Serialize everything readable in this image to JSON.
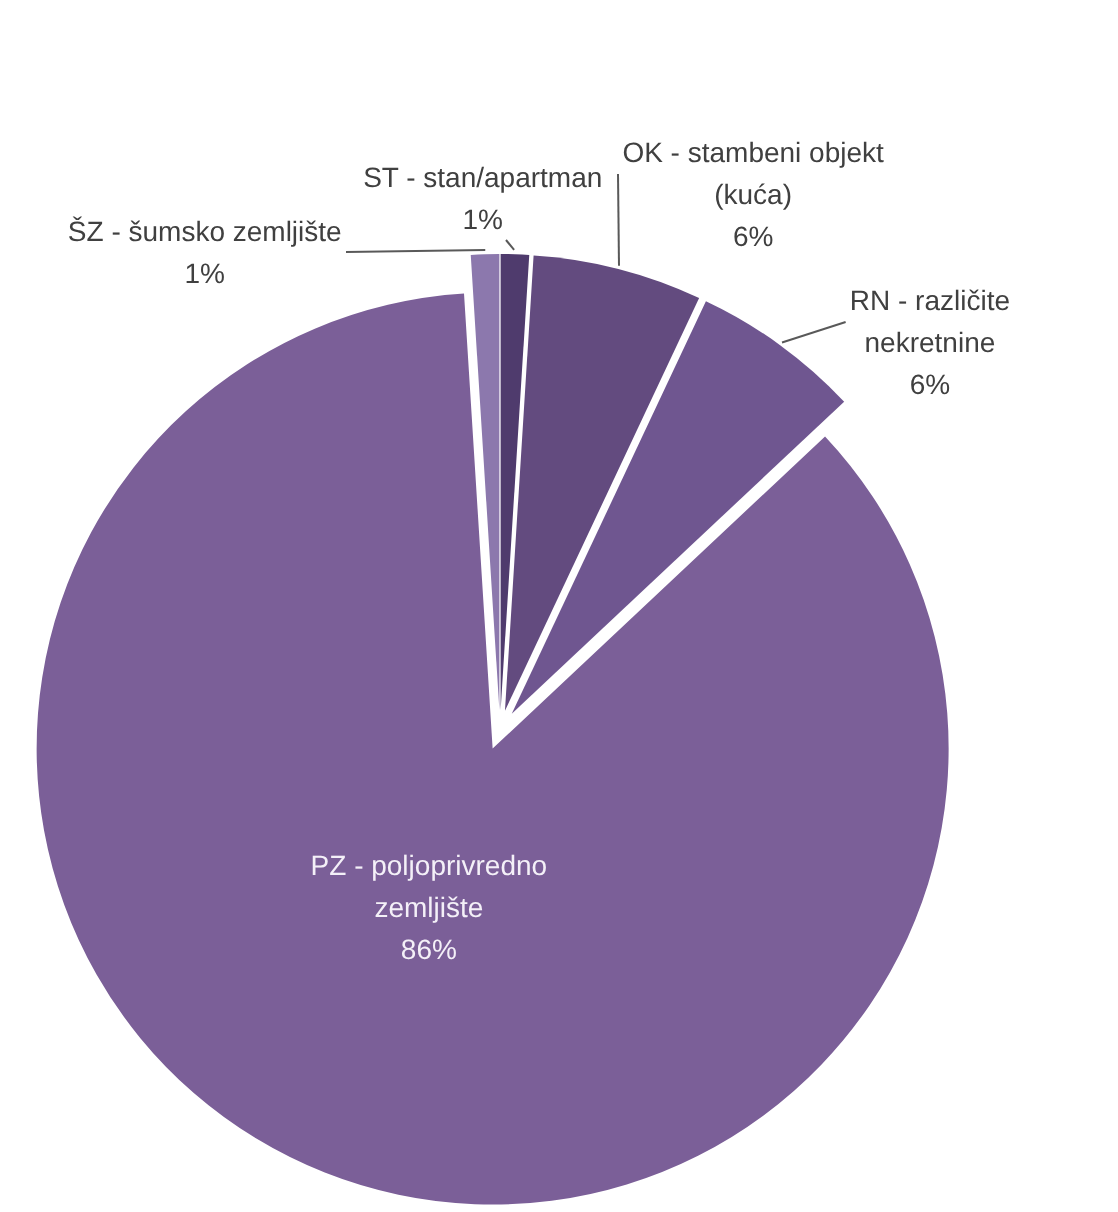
{
  "chart_data": {
    "type": "pie",
    "categories": [
      "ST - stan/apartman",
      "OK - stambeni objekt (kuća)",
      "RN - različite nekretnine",
      "PZ - poljoprivredno zemljište",
      "ŠZ - šumsko zemljište"
    ],
    "values": [
      1,
      6,
      6,
      86,
      1
    ],
    "colors": [
      "#4f3b6d",
      "#634b7f",
      "#6f5690",
      "#7b5f98",
      "#8c78ad"
    ],
    "value_labels": [
      "1%",
      "6%",
      "6%",
      "86%",
      "1%"
    ],
    "legend": false
  }
}
